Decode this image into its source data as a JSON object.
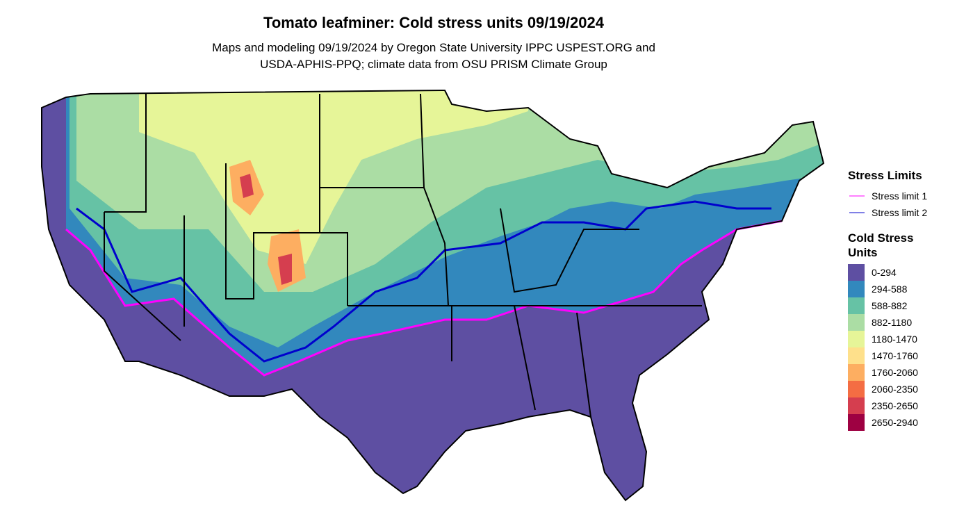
{
  "title": "Tomato leafminer: Cold stress units 09/19/2024",
  "subtitle": [
    "Maps and modeling 09/19/2024 by Oregon State University IPPC USPEST.ORG and",
    "USDA-APHIS-PPQ; climate data from OSU PRISM Climate Group"
  ],
  "legend": {
    "stress_limits": {
      "title": "Stress Limits",
      "items": [
        {
          "label": "Stress limit 1",
          "color": "#ff00ff"
        },
        {
          "label": "Stress limit 2",
          "color": "#0000cd"
        }
      ]
    },
    "cold_stress": {
      "title": [
        "Cold Stress",
        "Units"
      ],
      "items": [
        {
          "label": "0-294",
          "color": "#5e4fa2"
        },
        {
          "label": "294-588",
          "color": "#3288bd"
        },
        {
          "label": "588-882",
          "color": "#66c2a5"
        },
        {
          "label": "882-1180",
          "color": "#abdda4"
        },
        {
          "label": "1180-1470",
          "color": "#e6f598"
        },
        {
          "label": "1470-1760",
          "color": "#fee08b"
        },
        {
          "label": "1760-2060",
          "color": "#fdae61"
        },
        {
          "label": "2060-2350",
          "color": "#f46d43"
        },
        {
          "label": "2350-2650",
          "color": "#d53e4f"
        },
        {
          "label": "2650-2940",
          "color": "#9e0142"
        }
      ]
    }
  }
}
